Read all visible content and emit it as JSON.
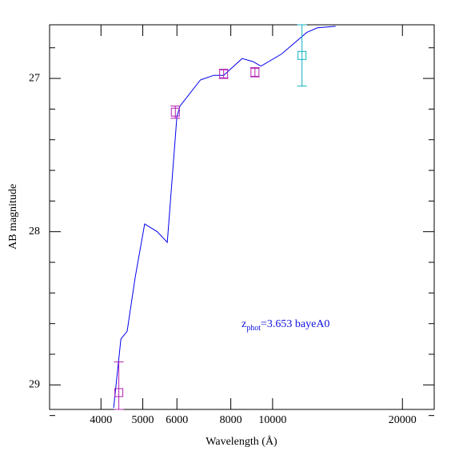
{
  "chart_data": {
    "type": "sed",
    "xlabel": "Wavelength (Å)",
    "ylabel": "AB magnitude",
    "xlog": true,
    "xlim": [
      3040,
      23700
    ],
    "ylim": [
      26.65,
      29.16
    ],
    "yinvert": true,
    "xticks": [
      4000,
      5000,
      6000,
      8000,
      10000,
      20000
    ],
    "yticks": [
      27,
      28,
      29
    ],
    "yminor": [
      26.8,
      27.2,
      27.4,
      27.6,
      27.8,
      28.2,
      28.4,
      28.6,
      28.8,
      29.2
    ],
    "model": {
      "color": "#0000ee",
      "x": [
        4280,
        4450,
        4600,
        4800,
        5050,
        5400,
        5700,
        6000,
        6100,
        6800,
        7300,
        7700,
        8500,
        9000,
        9400,
        10500,
        12000,
        12700,
        14000
      ],
      "values": [
        29.15,
        28.7,
        28.65,
        28.3,
        27.95,
        28.0,
        28.07,
        27.25,
        27.18,
        27.01,
        26.98,
        26.98,
        26.87,
        26.89,
        26.92,
        26.84,
        26.7,
        26.67,
        26.66
      ]
    },
    "photometry": [
      {
        "color": "#b020b0",
        "x": [
          4400,
          5950,
          7700,
          9100
        ],
        "values": [
          29.05,
          27.22,
          26.97,
          26.96
        ],
        "errors": [
          0.2,
          0.04,
          0.03,
          0.03
        ]
      },
      {
        "color": "#10b0c0",
        "x": [
          11700
        ],
        "values": [
          26.85
        ],
        "errors": [
          0.2
        ]
      }
    ],
    "annotation": {
      "symbol": "z",
      "subscript": "phot",
      "text": "=3.653 bayeA0"
    }
  }
}
